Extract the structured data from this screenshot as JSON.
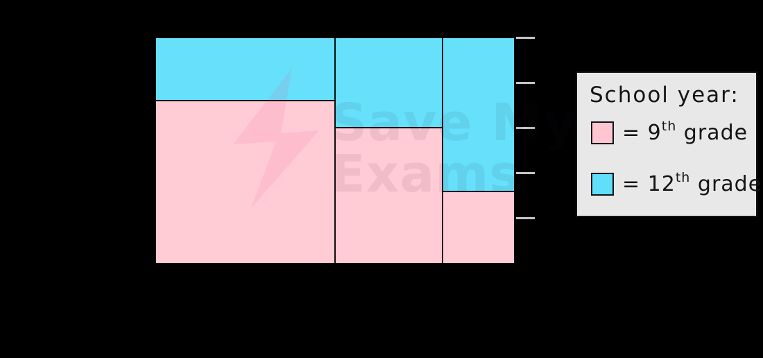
{
  "chart_data": {
    "type": "mosaic",
    "title": "",
    "x_axis": {
      "labels_visible": false
    },
    "y_axis": {
      "labels_visible": false,
      "tick_fractions_from_bottom": [
        1.0,
        0.8,
        0.6,
        0.4,
        0.2
      ]
    },
    "series_names": [
      "12th grade",
      "9th grade"
    ],
    "columns": [
      {
        "width_fraction": 0.5,
        "top_segment": {
          "series": "12th grade",
          "fraction": 0.28
        },
        "bottom_segment": {
          "series": "9th grade",
          "fraction": 0.72
        }
      },
      {
        "width_fraction": 0.3,
        "top_segment": {
          "series": "12th grade",
          "fraction": 0.4
        },
        "bottom_segment": {
          "series": "9th grade",
          "fraction": 0.6
        }
      },
      {
        "width_fraction": 0.2,
        "top_segment": {
          "series": "12th grade",
          "fraction": 0.68
        },
        "bottom_segment": {
          "series": "9th grade",
          "fraction": 0.32
        }
      }
    ],
    "colors": {
      "ninth_grade_pink": "#ffcbd4",
      "twelfth_grade_blue": "#67e0fb",
      "cell_border": "#0d0d0d",
      "tick_gray": "#c6c6c6",
      "background": "#000000"
    },
    "legend_position": "right"
  },
  "legend": {
    "title": "School year:",
    "background": "#e8e8e8",
    "border_color": "#141414",
    "items": [
      {
        "series": "9th grade",
        "swatch_color": "#ffc6d2",
        "text_before_sup": "= 9",
        "sup": "th",
        "text_after_sup": " grade"
      },
      {
        "series": "12th grade",
        "swatch_color": "#5fdffa",
        "text_before_sup": "= 12",
        "sup": "th",
        "text_after_sup": " grade"
      }
    ]
  },
  "watermark": {
    "line1": "Save My",
    "line2": "Exams",
    "bolt_color": "rgba(236,94,149,0.12)"
  }
}
